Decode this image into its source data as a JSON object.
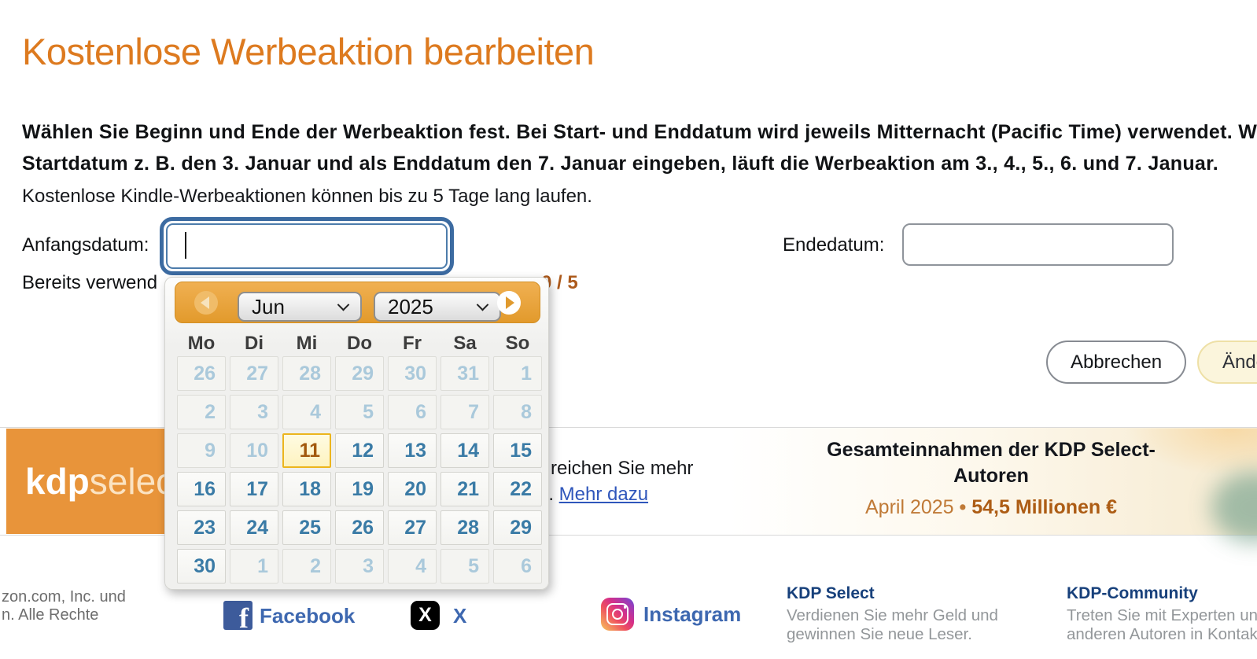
{
  "page": {
    "title": "Kostenlose Werbeaktion bearbeiten"
  },
  "intro": {
    "bold_line1": "Wählen Sie Beginn und Ende der Werbeaktion fest. Bei Start- und Enddatum wird jeweils Mitternacht (Pacific Time) verwendet. Wenn Sie als",
    "bold_line2": "Startdatum z. B. den 3. Januar und als Enddatum den 7. Januar eingeben, läuft die Werbeaktion am 3., 4., 5., 6. und 7. Januar.",
    "note": "Kostenlose Kindle-Werbeaktionen können bis zu 5 Tage lang laufen."
  },
  "form": {
    "start_label": "Anfangsdatum:",
    "start_value": "",
    "end_label": "Endedatum:",
    "end_value": "",
    "used_days_prefix": "Bereits verwend",
    "used_days_counter": "0 / 5",
    "cancel_label": "Abbrechen",
    "submit_label": "Ändern"
  },
  "calendar": {
    "month": "Jun",
    "year": "2025",
    "weekdays": [
      "Mo",
      "Di",
      "Mi",
      "Do",
      "Fr",
      "Sa",
      "So"
    ],
    "weeks": [
      [
        {
          "d": 26,
          "s": "m"
        },
        {
          "d": 27,
          "s": "m"
        },
        {
          "d": 28,
          "s": "m"
        },
        {
          "d": 29,
          "s": "m"
        },
        {
          "d": 30,
          "s": "m"
        },
        {
          "d": 31,
          "s": "m"
        },
        {
          "d": 1,
          "s": "m"
        }
      ],
      [
        {
          "d": 2,
          "s": "m"
        },
        {
          "d": 3,
          "s": "m"
        },
        {
          "d": 4,
          "s": "m"
        },
        {
          "d": 5,
          "s": "m"
        },
        {
          "d": 6,
          "s": "m"
        },
        {
          "d": 7,
          "s": "m"
        },
        {
          "d": 8,
          "s": "m"
        }
      ],
      [
        {
          "d": 9,
          "s": "m"
        },
        {
          "d": 10,
          "s": "m"
        },
        {
          "d": 11,
          "s": "t"
        },
        {
          "d": 12,
          "s": "a"
        },
        {
          "d": 13,
          "s": "a"
        },
        {
          "d": 14,
          "s": "a"
        },
        {
          "d": 15,
          "s": "a"
        }
      ],
      [
        {
          "d": 16,
          "s": "a"
        },
        {
          "d": 17,
          "s": "a"
        },
        {
          "d": 18,
          "s": "a"
        },
        {
          "d": 19,
          "s": "a"
        },
        {
          "d": 20,
          "s": "a"
        },
        {
          "d": 21,
          "s": "a"
        },
        {
          "d": 22,
          "s": "a"
        }
      ],
      [
        {
          "d": 23,
          "s": "a"
        },
        {
          "d": 24,
          "s": "a"
        },
        {
          "d": 25,
          "s": "a"
        },
        {
          "d": 26,
          "s": "a"
        },
        {
          "d": 27,
          "s": "a"
        },
        {
          "d": 28,
          "s": "a"
        },
        {
          "d": 29,
          "s": "a"
        }
      ],
      [
        {
          "d": 30,
          "s": "a"
        },
        {
          "d": 1,
          "s": "m"
        },
        {
          "d": 2,
          "s": "m"
        },
        {
          "d": 3,
          "s": "m"
        },
        {
          "d": 4,
          "s": "m"
        },
        {
          "d": 5,
          "s": "m"
        },
        {
          "d": 6,
          "s": "m"
        }
      ]
    ]
  },
  "banner": {
    "logo_bold": "kdp",
    "logo_light": "select",
    "tagline_line1": "reichen Sie mehr",
    "tagline_line2_prefix": "l.",
    "tagline_link": "Mehr dazu",
    "stats_title": "Gesamteinnahmen der KDP Select-Autoren",
    "stats_period": "April 2025",
    "stats_bullet": "•",
    "stats_value": "54,5 Millionen €"
  },
  "footer": {
    "copyright_line1": "zon.com, Inc. und",
    "copyright_line2": "n. Alle Rechte",
    "social": [
      {
        "name": "Facebook"
      },
      {
        "name": "X"
      },
      {
        "name": "Instagram"
      }
    ],
    "links": [
      {
        "title": "KDP Select",
        "desc1": "Verdienen Sie mehr Geld und",
        "desc2": "gewinnen Sie neue Leser."
      },
      {
        "title": "KDP-Community",
        "desc1": "Treten Sie mit Experten und",
        "desc2": "anderen Autoren in Kontakt."
      }
    ]
  },
  "colors": {
    "accent_orange": "#dd7a1f",
    "calendar_header": "#e8a33d",
    "active_day_blue": "#3a7ba6",
    "muted_day_blue": "#aac9db",
    "today_border": "#ecb51e",
    "focus_ring_blue": "#3c6ba1",
    "stats_orange": "#ad5d15",
    "footer_link_navy": "#17407b"
  }
}
